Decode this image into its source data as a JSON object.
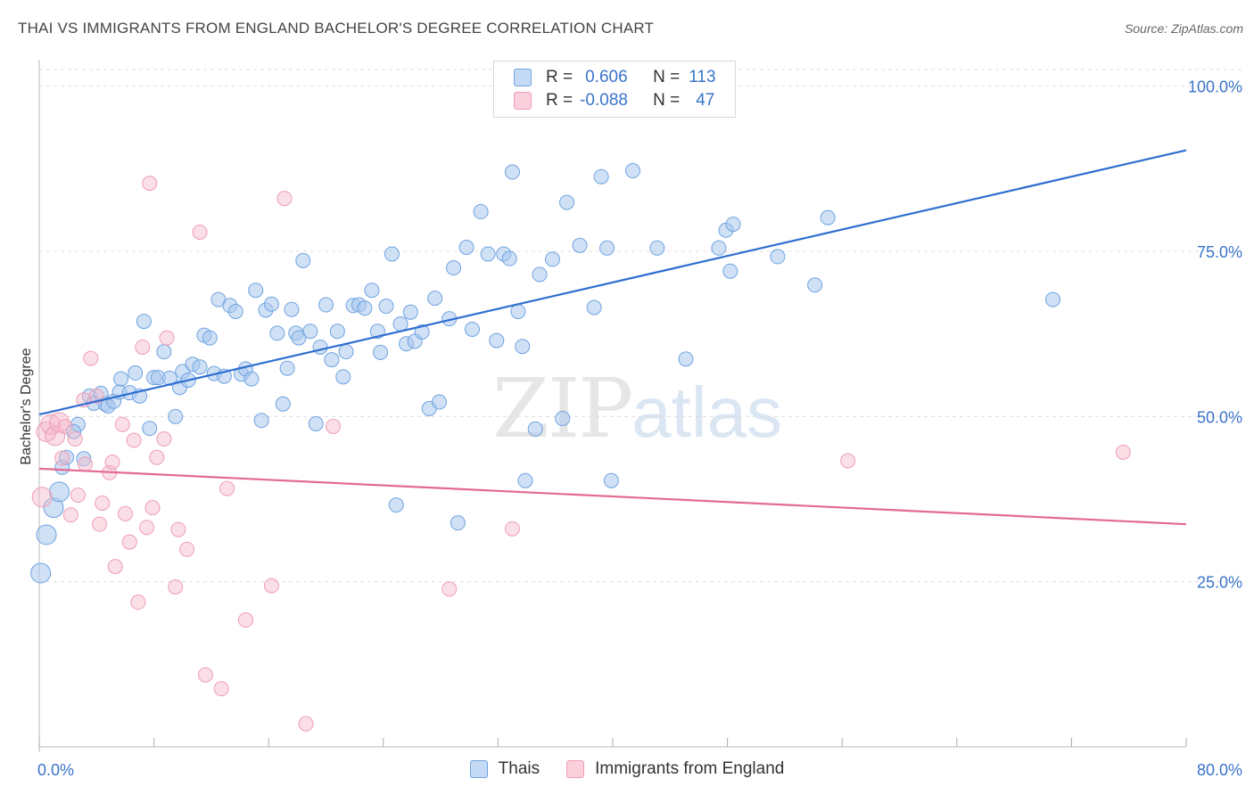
{
  "header": {
    "title": "THAI VS IMMIGRANTS FROM ENGLAND BACHELOR'S DEGREE CORRELATION CHART",
    "source": "Source: ZipAtlas.com"
  },
  "watermark": {
    "zip": "ZIP",
    "atlas": "atlas"
  },
  "legend": {
    "rows": [
      {
        "r_label": "R =",
        "r_value": "0.606",
        "n_label": "N =",
        "n_value": "113",
        "color": "#a9c8ef"
      },
      {
        "r_label": "R =",
        "r_value": "-0.088",
        "n_label": "N =",
        "n_value": "47",
        "color": "#f5b8c9"
      }
    ]
  },
  "bottom_legend": {
    "thais": "Thais",
    "england": "Immigrants from England"
  },
  "chart_data": {
    "type": "scatter",
    "title": "THAI VS IMMIGRANTS FROM ENGLAND BACHELOR'S DEGREE CORRELATION CHART",
    "xlabel": "",
    "ylabel": "Bachelor's Degree",
    "xlim": [
      0,
      80
    ],
    "ylim": [
      0,
      104
    ],
    "x_tick_labels": [
      "0.0%",
      "80.0%"
    ],
    "y_ticks": [
      25,
      50,
      75,
      100
    ],
    "y_tick_labels": [
      "25.0%",
      "50.0%",
      "75.0%",
      "100.0%"
    ],
    "grid": "horizontal-dashed",
    "legend_position": "top-center",
    "colors": {
      "thais": "#6fa3e0",
      "thais_line": "#2f6fd0",
      "england": "#ef9db6",
      "england_line": "#e36a93",
      "axis_text": "#3a74c9"
    },
    "series": [
      {
        "name": "Thais",
        "trend": {
          "x": [
            0,
            80
          ],
          "y": [
            50.3,
            90.3
          ]
        },
        "points": [
          [
            0.1,
            26.3
          ],
          [
            0.5,
            32.1
          ],
          [
            1.0,
            36.2
          ],
          [
            1.4,
            38.6
          ],
          [
            1.6,
            42.3
          ],
          [
            1.9,
            43.8
          ],
          [
            2.7,
            48.8
          ],
          [
            2.4,
            47.7
          ],
          [
            3.1,
            43.6
          ],
          [
            3.5,
            53.1
          ],
          [
            3.8,
            52.0
          ],
          [
            4.3,
            53.5
          ],
          [
            4.6,
            51.9
          ],
          [
            4.8,
            51.6
          ],
          [
            5.2,
            52.3
          ],
          [
            5.6,
            53.7
          ],
          [
            5.7,
            55.7
          ],
          [
            6.3,
            53.6
          ],
          [
            6.7,
            56.6
          ],
          [
            7.0,
            53.1
          ],
          [
            7.3,
            64.4
          ],
          [
            7.7,
            48.2
          ],
          [
            8.0,
            55.9
          ],
          [
            8.3,
            55.9
          ],
          [
            8.7,
            59.8
          ],
          [
            9.1,
            55.8
          ],
          [
            9.5,
            50.0
          ],
          [
            9.8,
            54.4
          ],
          [
            10.0,
            56.8
          ],
          [
            10.4,
            55.5
          ],
          [
            10.7,
            57.9
          ],
          [
            11.2,
            57.5
          ],
          [
            11.5,
            62.3
          ],
          [
            11.9,
            61.9
          ],
          [
            12.2,
            56.5
          ],
          [
            12.5,
            67.7
          ],
          [
            12.9,
            56.1
          ],
          [
            13.3,
            66.8
          ],
          [
            13.7,
            65.9
          ],
          [
            14.1,
            56.4
          ],
          [
            14.4,
            57.2
          ],
          [
            14.8,
            55.7
          ],
          [
            15.1,
            69.1
          ],
          [
            15.5,
            49.4
          ],
          [
            15.8,
            66.1
          ],
          [
            16.2,
            67.0
          ],
          [
            16.6,
            62.6
          ],
          [
            17.0,
            51.9
          ],
          [
            17.3,
            57.3
          ],
          [
            17.6,
            66.2
          ],
          [
            17.9,
            62.6
          ],
          [
            18.1,
            61.9
          ],
          [
            18.4,
            73.6
          ],
          [
            18.9,
            62.9
          ],
          [
            19.3,
            48.9
          ],
          [
            19.6,
            60.5
          ],
          [
            20.0,
            66.9
          ],
          [
            20.4,
            58.6
          ],
          [
            20.8,
            62.9
          ],
          [
            21.2,
            56.0
          ],
          [
            21.4,
            59.8
          ],
          [
            21.9,
            66.8
          ],
          [
            22.3,
            66.9
          ],
          [
            22.7,
            66.4
          ],
          [
            23.2,
            69.1
          ],
          [
            23.6,
            62.9
          ],
          [
            23.8,
            59.7
          ],
          [
            24.2,
            66.7
          ],
          [
            24.6,
            74.6
          ],
          [
            24.9,
            36.6
          ],
          [
            25.2,
            64.0
          ],
          [
            25.6,
            61.0
          ],
          [
            25.9,
            65.8
          ],
          [
            26.2,
            61.4
          ],
          [
            26.7,
            62.8
          ],
          [
            27.2,
            51.2
          ],
          [
            27.6,
            67.9
          ],
          [
            27.9,
            52.2
          ],
          [
            28.6,
            64.8
          ],
          [
            28.9,
            72.5
          ],
          [
            29.2,
            33.9
          ],
          [
            29.8,
            75.6
          ],
          [
            30.2,
            63.2
          ],
          [
            30.8,
            81.0
          ],
          [
            31.3,
            74.6
          ],
          [
            31.9,
            61.5
          ],
          [
            32.4,
            74.6
          ],
          [
            32.8,
            73.9
          ],
          [
            33.0,
            87.0
          ],
          [
            33.4,
            65.9
          ],
          [
            33.7,
            60.6
          ],
          [
            33.9,
            40.3
          ],
          [
            34.6,
            48.1
          ],
          [
            34.9,
            71.5
          ],
          [
            35.8,
            73.8
          ],
          [
            36.5,
            49.7
          ],
          [
            36.8,
            82.4
          ],
          [
            37.7,
            75.9
          ],
          [
            38.7,
            66.5
          ],
          [
            39.2,
            86.3
          ],
          [
            39.6,
            75.5
          ],
          [
            39.9,
            40.3
          ],
          [
            41.4,
            87.2
          ],
          [
            43.1,
            75.5
          ],
          [
            45.1,
            58.7
          ],
          [
            47.4,
            75.5
          ],
          [
            47.9,
            78.2
          ],
          [
            48.2,
            72.0
          ],
          [
            48.4,
            79.1
          ],
          [
            51.5,
            74.2
          ],
          [
            54.1,
            69.9
          ],
          [
            55.0,
            80.1
          ],
          [
            70.7,
            67.7
          ]
        ]
      },
      {
        "name": "Immigrants from England",
        "trend": {
          "x": [
            0,
            80
          ],
          "y": [
            42.1,
            33.7
          ]
        },
        "points": [
          [
            0.2,
            37.8
          ],
          [
            0.5,
            47.7
          ],
          [
            0.8,
            48.8
          ],
          [
            1.1,
            47.1
          ],
          [
            1.4,
            49.1
          ],
          [
            1.6,
            43.7
          ],
          [
            1.8,
            48.5
          ],
          [
            2.2,
            35.1
          ],
          [
            2.5,
            46.6
          ],
          [
            2.7,
            38.1
          ],
          [
            3.1,
            52.5
          ],
          [
            3.2,
            42.8
          ],
          [
            3.6,
            58.8
          ],
          [
            4.0,
            53.1
          ],
          [
            4.2,
            33.7
          ],
          [
            4.4,
            36.9
          ],
          [
            4.9,
            41.5
          ],
          [
            5.1,
            43.1
          ],
          [
            5.3,
            27.3
          ],
          [
            5.8,
            48.8
          ],
          [
            6.0,
            35.3
          ],
          [
            6.3,
            31.0
          ],
          [
            6.6,
            46.4
          ],
          [
            6.9,
            21.9
          ],
          [
            7.2,
            60.5
          ],
          [
            7.5,
            33.2
          ],
          [
            7.7,
            85.3
          ],
          [
            7.9,
            36.2
          ],
          [
            8.2,
            43.8
          ],
          [
            8.7,
            46.6
          ],
          [
            8.9,
            61.9
          ],
          [
            9.5,
            24.2
          ],
          [
            9.7,
            32.9
          ],
          [
            10.3,
            29.9
          ],
          [
            11.2,
            77.9
          ],
          [
            11.6,
            10.9
          ],
          [
            12.7,
            8.8
          ],
          [
            13.1,
            39.1
          ],
          [
            14.4,
            19.2
          ],
          [
            16.2,
            24.4
          ],
          [
            17.1,
            83.0
          ],
          [
            18.6,
            3.5
          ],
          [
            20.5,
            48.5
          ],
          [
            28.6,
            23.9
          ],
          [
            33.0,
            33.0
          ],
          [
            56.4,
            43.3
          ],
          [
            75.6,
            44.6
          ]
        ]
      }
    ]
  }
}
